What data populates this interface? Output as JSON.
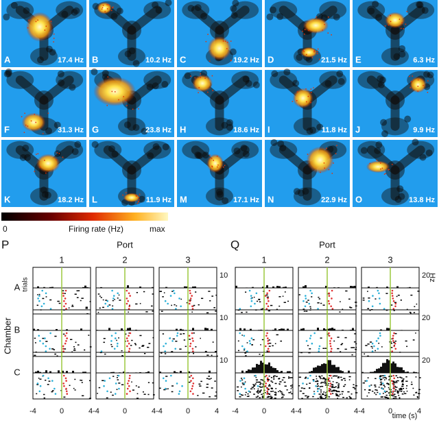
{
  "panels": [
    {
      "letter": "A",
      "rate": "17.4 Hz"
    },
    {
      "letter": "B",
      "rate": "10.2 Hz"
    },
    {
      "letter": "C",
      "rate": "19.2 Hz"
    },
    {
      "letter": "D",
      "rate": "21.5 Hz"
    },
    {
      "letter": "E",
      "rate": "6.3 Hz"
    },
    {
      "letter": "F",
      "rate": "31.3 Hz"
    },
    {
      "letter": "G",
      "rate": "23.8 Hz"
    },
    {
      "letter": "H",
      "rate": "18.6 Hz"
    },
    {
      "letter": "I",
      "rate": "11.8 Hz"
    },
    {
      "letter": "J",
      "rate": "9.9 Hz"
    },
    {
      "letter": "K",
      "rate": "18.2 Hz"
    },
    {
      "letter": "L",
      "rate": "11.9 Hz"
    },
    {
      "letter": "M",
      "rate": "17.1 Hz"
    },
    {
      "letter": "N",
      "rate": "22.9 Hz"
    },
    {
      "letter": "O",
      "rate": "13.8 Hz"
    }
  ],
  "colorbar": {
    "min": "0",
    "label": "Firing rate (Hz)",
    "max": "max"
  },
  "P": {
    "label": "P",
    "port_title": "Port",
    "ports": [
      "1",
      "2",
      "3"
    ],
    "chamber_title": "Chamber",
    "chambers": [
      "A",
      "B",
      "C"
    ],
    "trials_label": "trials",
    "y_ticks": [
      "10",
      "10",
      "10"
    ],
    "x_ticks": [
      "-4",
      "0",
      "4"
    ]
  },
  "Q": {
    "label": "Q",
    "port_title": "Port",
    "ports": [
      "1",
      "2",
      "3"
    ],
    "y_unit": "Hz",
    "y_ticks": [
      "20",
      "20",
      "20"
    ],
    "x_ticks": [
      "-4",
      "0",
      "4"
    ],
    "x_label": "time (s)"
  }
}
